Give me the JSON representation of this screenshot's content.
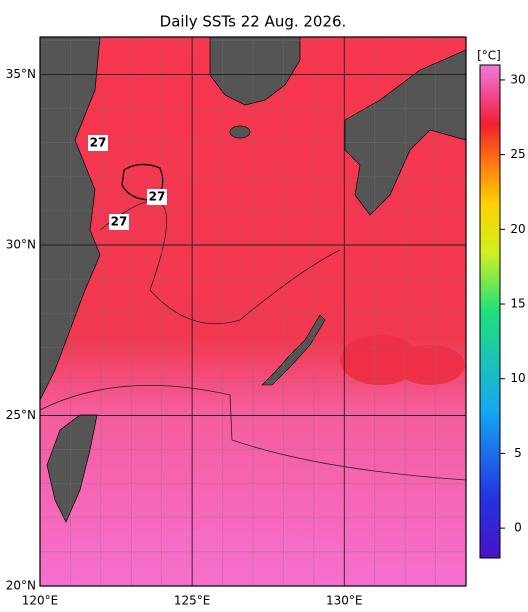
{
  "title": "Daily SSTs 22 Aug. 2026.",
  "map": {
    "lon_range": [
      120,
      134
    ],
    "lat_range": [
      20,
      36.1
    ],
    "lon_ticks": [
      {
        "value": 120,
        "label": "120°E"
      },
      {
        "value": 125,
        "label": "125°E"
      },
      {
        "value": 130,
        "label": "130°E"
      }
    ],
    "lat_ticks": [
      {
        "value": 35,
        "label": "35°N"
      },
      {
        "value": 30,
        "label": "30°N"
      },
      {
        "value": 25,
        "label": "25°N"
      },
      {
        "value": 20,
        "label": "20°N"
      }
    ],
    "grid": true
  },
  "colorbar": {
    "unit": "[°C]",
    "range": [
      -2,
      31
    ],
    "ticks": [
      0,
      5,
      10,
      15,
      20,
      25,
      30
    ]
  },
  "contour_labels": [
    "27",
    "27",
    "27"
  ]
}
